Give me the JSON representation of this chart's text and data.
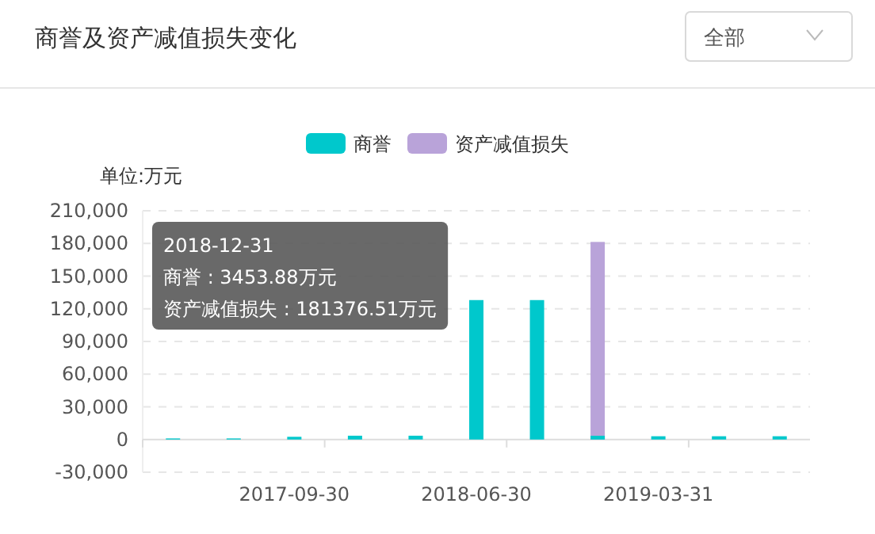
{
  "chart_data": {
    "type": "bar",
    "title": "商誉及资产减值损失变化",
    "ylabel": "单位:万元",
    "categories": [
      null,
      null,
      "2017-09-30",
      null,
      null,
      "2018-06-30",
      null,
      null,
      "2019-03-31",
      null,
      null
    ],
    "series": [
      {
        "name": "资产减值损失",
        "color": "#b9a3d9",
        "values": [
          null,
          null,
          null,
          null,
          null,
          null,
          null,
          181376.51,
          null,
          null,
          null
        ]
      },
      {
        "name": "商誉",
        "color": "#00c8cc",
        "values": [
          1000,
          1000,
          2500,
          3500,
          3500,
          128000,
          128000,
          3453.88,
          3000,
          3000,
          3000
        ]
      }
    ],
    "ylim": [
      -30000,
      210000
    ],
    "yticks": [
      {
        "value": -30000,
        "label": "-30,000"
      },
      0,
      {
        "value": 30000,
        "label": "30,000"
      },
      {
        "value": 60000,
        "label": "60,000"
      },
      {
        "value": 90000,
        "label": "90,000"
      },
      {
        "value": 120000,
        "label": "120,000"
      },
      {
        "value": 150000,
        "label": "150,000"
      },
      {
        "value": 180000,
        "label": "180,000"
      },
      {
        "value": 210000,
        "label": "210,000"
      }
    ],
    "grid": "y",
    "legend": "top",
    "annotations": [
      "全部",
      "2018-12-31",
      "商誉 : 3453.88万元",
      "资产减值损失 : 181376.51万元"
    ]
  }
}
